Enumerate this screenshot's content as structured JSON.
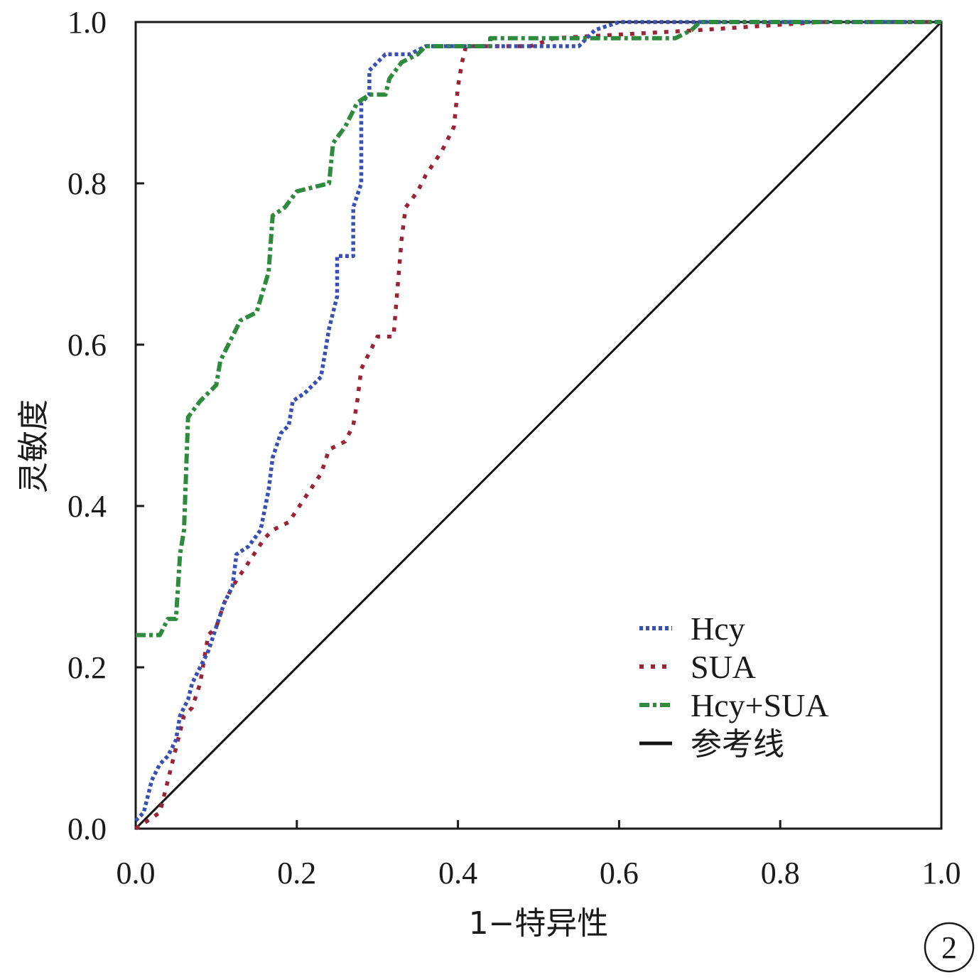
{
  "chart_data": {
    "type": "line",
    "xlabel": "1−特异性",
    "ylabel": "灵敏度",
    "xlim": [
      0,
      1
    ],
    "ylim": [
      0,
      1
    ],
    "x_ticks": [
      "0.0",
      "0.2",
      "0.4",
      "0.6",
      "0.8",
      "1.0"
    ],
    "y_ticks": [
      "0.0",
      "0.2",
      "0.4",
      "0.6",
      "0.8",
      "1.0"
    ],
    "legend_position": "bottom-right",
    "panel_label": "2",
    "series": [
      {
        "name": "Hcy",
        "color": "#3a4fb4",
        "dash": "dotted",
        "points": [
          [
            0,
            0.01
          ],
          [
            0.01,
            0.02
          ],
          [
            0.015,
            0.04
          ],
          [
            0.02,
            0.06
          ],
          [
            0.03,
            0.08
          ],
          [
            0.04,
            0.09
          ],
          [
            0.05,
            0.11
          ],
          [
            0.055,
            0.14
          ],
          [
            0.065,
            0.16
          ],
          [
            0.07,
            0.18
          ],
          [
            0.08,
            0.2
          ],
          [
            0.09,
            0.22
          ],
          [
            0.1,
            0.25
          ],
          [
            0.11,
            0.28
          ],
          [
            0.12,
            0.3
          ],
          [
            0.125,
            0.34
          ],
          [
            0.14,
            0.35
          ],
          [
            0.155,
            0.37
          ],
          [
            0.165,
            0.42
          ],
          [
            0.17,
            0.46
          ],
          [
            0.18,
            0.49
          ],
          [
            0.19,
            0.5
          ],
          [
            0.195,
            0.53
          ],
          [
            0.21,
            0.54
          ],
          [
            0.23,
            0.56
          ],
          [
            0.24,
            0.62
          ],
          [
            0.25,
            0.66
          ],
          [
            0.25,
            0.71
          ],
          [
            0.27,
            0.71
          ],
          [
            0.27,
            0.77
          ],
          [
            0.28,
            0.8
          ],
          [
            0.28,
            0.9
          ],
          [
            0.29,
            0.91
          ],
          [
            0.29,
            0.94
          ],
          [
            0.3,
            0.95
          ],
          [
            0.31,
            0.96
          ],
          [
            0.34,
            0.96
          ],
          [
            0.36,
            0.97
          ],
          [
            0.55,
            0.97
          ],
          [
            0.57,
            0.99
          ],
          [
            0.6,
            1.0
          ],
          [
            1.0,
            1.0
          ]
        ]
      },
      {
        "name": "SUA",
        "color": "#9b2335",
        "dash": "dashed",
        "points": [
          [
            0,
            0
          ],
          [
            0.03,
            0.02
          ],
          [
            0.04,
            0.06
          ],
          [
            0.05,
            0.1
          ],
          [
            0.06,
            0.14
          ],
          [
            0.07,
            0.15
          ],
          [
            0.08,
            0.18
          ],
          [
            0.085,
            0.21
          ],
          [
            0.09,
            0.24
          ],
          [
            0.1,
            0.25
          ],
          [
            0.11,
            0.28
          ],
          [
            0.12,
            0.3
          ],
          [
            0.14,
            0.33
          ],
          [
            0.16,
            0.36
          ],
          [
            0.17,
            0.37
          ],
          [
            0.19,
            0.38
          ],
          [
            0.21,
            0.41
          ],
          [
            0.23,
            0.44
          ],
          [
            0.24,
            0.47
          ],
          [
            0.26,
            0.48
          ],
          [
            0.27,
            0.5
          ],
          [
            0.275,
            0.53
          ],
          [
            0.28,
            0.57
          ],
          [
            0.29,
            0.59
          ],
          [
            0.3,
            0.61
          ],
          [
            0.32,
            0.61
          ],
          [
            0.325,
            0.67
          ],
          [
            0.33,
            0.73
          ],
          [
            0.335,
            0.77
          ],
          [
            0.35,
            0.79
          ],
          [
            0.36,
            0.81
          ],
          [
            0.38,
            0.84
          ],
          [
            0.395,
            0.87
          ],
          [
            0.4,
            0.92
          ],
          [
            0.405,
            0.95
          ],
          [
            0.41,
            0.97
          ],
          [
            0.49,
            0.97
          ],
          [
            0.52,
            0.98
          ],
          [
            0.7,
            0.99
          ],
          [
            0.85,
            1.0
          ],
          [
            1.0,
            1.0
          ]
        ]
      },
      {
        "name": "Hcy+SUA",
        "color": "#2e8b3e",
        "dash": "dashdot",
        "points": [
          [
            0,
            0.24
          ],
          [
            0.03,
            0.24
          ],
          [
            0.04,
            0.26
          ],
          [
            0.05,
            0.26
          ],
          [
            0.055,
            0.34
          ],
          [
            0.06,
            0.37
          ],
          [
            0.065,
            0.51
          ],
          [
            0.08,
            0.53
          ],
          [
            0.1,
            0.55
          ],
          [
            0.105,
            0.58
          ],
          [
            0.12,
            0.61
          ],
          [
            0.13,
            0.63
          ],
          [
            0.15,
            0.64
          ],
          [
            0.165,
            0.69
          ],
          [
            0.17,
            0.76
          ],
          [
            0.185,
            0.77
          ],
          [
            0.2,
            0.79
          ],
          [
            0.24,
            0.8
          ],
          [
            0.245,
            0.85
          ],
          [
            0.26,
            0.87
          ],
          [
            0.275,
            0.9
          ],
          [
            0.29,
            0.91
          ],
          [
            0.31,
            0.91
          ],
          [
            0.315,
            0.93
          ],
          [
            0.33,
            0.95
          ],
          [
            0.35,
            0.96
          ],
          [
            0.36,
            0.97
          ],
          [
            0.44,
            0.97
          ],
          [
            0.44,
            0.98
          ],
          [
            0.67,
            0.98
          ],
          [
            0.69,
            0.99
          ],
          [
            0.7,
            1.0
          ],
          [
            1.0,
            1.0
          ]
        ]
      },
      {
        "name": "参考线",
        "color": "#111111",
        "dash": "solid",
        "points": [
          [
            0,
            0
          ],
          [
            1,
            1
          ]
        ]
      }
    ]
  }
}
